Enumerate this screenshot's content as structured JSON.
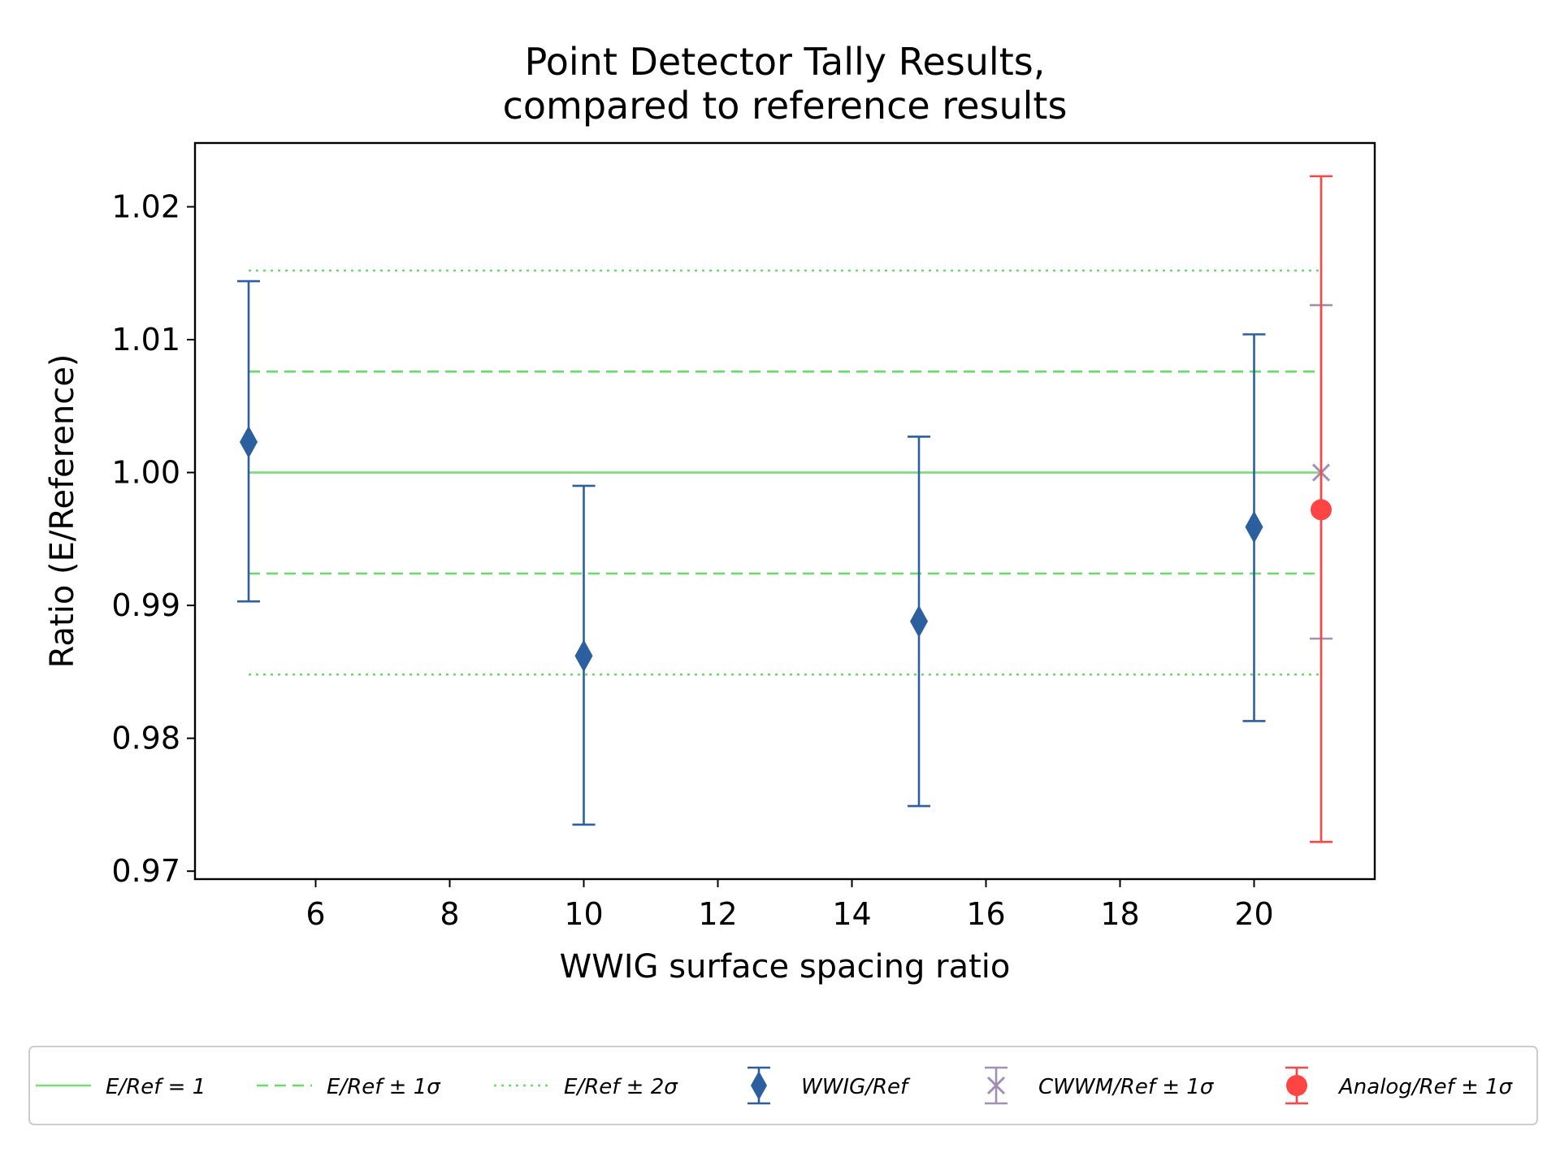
{
  "chart_data": {
    "type": "scatter",
    "title_lines": [
      "Point Detector Tally Results,",
      "compared to reference results"
    ],
    "xlabel": "WWIG surface spacing ratio",
    "ylabel": "Ratio (E/Reference)",
    "xlim": [
      4.2,
      21.8
    ],
    "ylim": [
      0.9694,
      1.0248
    ],
    "xticks": [
      6,
      8,
      10,
      12,
      14,
      16,
      18,
      20
    ],
    "xtick_labels": [
      "6",
      "8",
      "10",
      "12",
      "14",
      "16",
      "18",
      "20"
    ],
    "yticks": [
      0.97,
      0.98,
      0.99,
      1.0,
      1.01,
      1.02
    ],
    "ytick_labels": [
      "0.97",
      "0.98",
      "0.99",
      "1.00",
      "1.01",
      "1.02"
    ],
    "reference_lines": [
      {
        "name": "E/Ref = 1",
        "y": 1.0,
        "x_range": [
          5,
          21
        ],
        "style": "solid",
        "color": "#77dd77"
      },
      {
        "name": "E/Ref ± 1σ upper",
        "y": 1.0076,
        "x_range": [
          5,
          21
        ],
        "style": "dashed",
        "color": "#66dd66"
      },
      {
        "name": "E/Ref ± 1σ lower",
        "y": 0.9924,
        "x_range": [
          5,
          21
        ],
        "style": "dashed",
        "color": "#66dd66"
      },
      {
        "name": "E/Ref ± 2σ upper",
        "y": 1.0152,
        "x_range": [
          5,
          21
        ],
        "style": "dotted",
        "color": "#66dd66"
      },
      {
        "name": "E/Ref ± 2σ lower",
        "y": 0.9848,
        "x_range": [
          5,
          21
        ],
        "style": "dotted",
        "color": "#66dd66"
      }
    ],
    "series": [
      {
        "name": "WWIG/Ref",
        "marker": "diamond",
        "color": "#2c5fa0",
        "points": [
          {
            "x": 5,
            "y": 1.0023,
            "lo": 0.9903,
            "hi": 1.0144
          },
          {
            "x": 10,
            "y": 0.9862,
            "lo": 0.9735,
            "hi": 0.999
          },
          {
            "x": 15,
            "y": 0.9888,
            "lo": 0.9749,
            "hi": 1.0027
          },
          {
            "x": 20,
            "y": 0.9959,
            "lo": 0.9813,
            "hi": 1.0104
          }
        ]
      },
      {
        "name": "CWWM/Ref",
        "marker": "x",
        "color": "#a090b8",
        "points": [
          {
            "x": 21,
            "y": 1.0,
            "lo": 0.9875,
            "hi": 1.0126
          }
        ]
      },
      {
        "name": "Analog/Ref",
        "marker": "circle",
        "color": "#ff4444",
        "points": [
          {
            "x": 21,
            "y": 0.9972,
            "lo": 0.9722,
            "hi": 1.0223
          }
        ]
      }
    ],
    "legend": {
      "placement": "bottom, below axes",
      "entries": [
        {
          "label": "E/Ref = 1",
          "kind": "solid",
          "color": "#77dd77"
        },
        {
          "label": "E/Ref ± 1σ",
          "kind": "dashed",
          "color": "#66dd66"
        },
        {
          "label": "E/Ref ± 2σ",
          "kind": "dotted",
          "color": "#66dd66"
        },
        {
          "label": "WWIG/Ref",
          "kind": "diamond",
          "color": "#2c5fa0"
        },
        {
          "label": "CWWM/Ref ± 1σ",
          "kind": "x",
          "color": "#a090b8"
        },
        {
          "label": "Analog/Ref ± 1σ",
          "kind": "circle",
          "color": "#ff4444"
        }
      ]
    },
    "grid": false
  }
}
